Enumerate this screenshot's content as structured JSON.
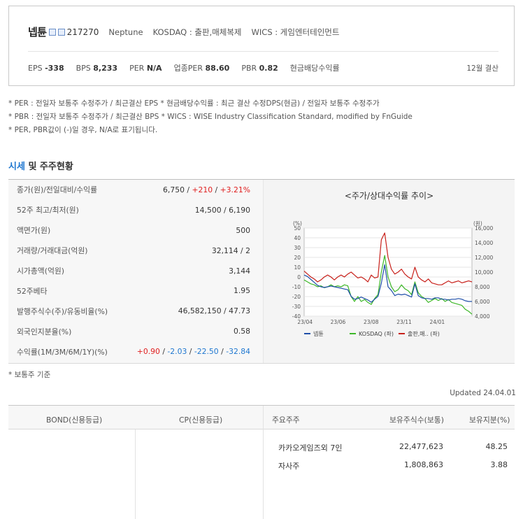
{
  "company": {
    "name": "넵튠",
    "code": "217270",
    "english_name": "Neptune",
    "market": "KOSDAQ : 출판,매체복제",
    "wics": "WICS : 게임엔터테인먼트"
  },
  "stats": [
    {
      "label": "EPS",
      "value": "-338"
    },
    {
      "label": "BPS",
      "value": "8,233"
    },
    {
      "label": "PER",
      "value": "N/A"
    },
    {
      "label": "업종PER",
      "value": "88.60"
    },
    {
      "label": "PBR",
      "value": "0.82"
    },
    {
      "label": "현금배당수익률",
      "value": ""
    }
  ],
  "settlement": "12월 결산",
  "notes": [
    "* PER : 전일자 보통주 수정주가 / 최근결산 EPS * 현금배당수익률 : 최근 결산 수정DPS(현금) / 전일자 보통주 수정주가",
    "* PBR : 전일자 보통주 수정주가 / 최근결산 BPS * WICS : WISE Industry Classification Standard, modified by FnGuide",
    "* PER, PBR값이 (-)일 경우, N/A로 표기됩니다."
  ],
  "section": {
    "title_accent": "시세",
    "title_rest": " 및 주주현황"
  },
  "price_table": [
    {
      "label": "종가(원)/전일대비/수익률",
      "parts": [
        {
          "t": "6,750 / ",
          "c": ""
        },
        {
          "t": "+210",
          "c": "red"
        },
        {
          "t": " / ",
          "c": ""
        },
        {
          "t": "+3.21%",
          "c": "red"
        }
      ]
    },
    {
      "label": "52주 최고/최저(원)",
      "parts": [
        {
          "t": "14,500 / 6,190",
          "c": ""
        }
      ]
    },
    {
      "label": "액면가(원)",
      "parts": [
        {
          "t": "500",
          "c": ""
        }
      ]
    },
    {
      "label": "거래량/거래대금(억원)",
      "parts": [
        {
          "t": "32,114 / 2",
          "c": ""
        }
      ]
    },
    {
      "label": "시가총액(억원)",
      "parts": [
        {
          "t": "3,144",
          "c": ""
        }
      ]
    },
    {
      "label": "52주베타",
      "parts": [
        {
          "t": "1.95",
          "c": ""
        }
      ]
    },
    {
      "label": "발행주식수(주)/유동비율(%)",
      "parts": [
        {
          "t": "46,582,150 / 47.73",
          "c": ""
        }
      ]
    },
    {
      "label": "외국인지분율(%)",
      "parts": [
        {
          "t": "0.58",
          "c": ""
        }
      ]
    },
    {
      "label": "수익률(1M/3M/6M/1Y)(%)",
      "parts": [
        {
          "t": "+0.90",
          "c": "red"
        },
        {
          "t": " / ",
          "c": ""
        },
        {
          "t": "-2.03",
          "c": "blue"
        },
        {
          "t": " / ",
          "c": ""
        },
        {
          "t": "-22.50",
          "c": "blue"
        },
        {
          "t": " / ",
          "c": ""
        },
        {
          "t": "-32.84",
          "c": "blue"
        }
      ]
    }
  ],
  "chart_data": {
    "type": "line",
    "title": "<주가/상대수익률 추이>",
    "left_axis_label": "(%)",
    "right_axis_label": "(원)",
    "left_ylim": [
      -40,
      50
    ],
    "right_ylim": [
      4000,
      16000
    ],
    "left_ticks": [
      "50",
      "40",
      "30",
      "20",
      "10",
      "0",
      "-10",
      "-20",
      "-30",
      "-40"
    ],
    "right_ticks": [
      "16,000",
      "14,000",
      "12,000",
      "10,000",
      "8,000",
      "6,000",
      "4,000"
    ],
    "x_ticks": [
      "23/04",
      "23/06",
      "23/08",
      "23/11",
      "24/01"
    ],
    "legend_position": "bottom",
    "series": [
      {
        "name": "넵튠",
        "color": "#1f4fa8",
        "axis": "right",
        "values": [
          9600,
          9400,
          9000,
          8600,
          8200,
          8000,
          7900,
          8000,
          8100,
          8000,
          7900,
          7800,
          7700,
          7600,
          6700,
          6300,
          6400,
          6600,
          6400,
          6200,
          5900,
          6300,
          6700,
          8500,
          11000,
          8000,
          7500,
          6800,
          7000,
          6900,
          7000,
          6800,
          6600,
          8400,
          6800,
          6500,
          6400,
          6400,
          6300,
          6500,
          6500,
          6300,
          6300,
          6200,
          6300,
          6300,
          6400,
          6300,
          6100,
          6000,
          6000
        ]
      },
      {
        "name": "KOSDAQ (좌)",
        "color": "#3fb82a",
        "axis": "left",
        "values": [
          -3,
          -5,
          -7,
          -8,
          -10,
          -9,
          -11,
          -10,
          -8,
          -10,
          -9,
          -10,
          -8,
          -9,
          -20,
          -25,
          -20,
          -25,
          -23,
          -26,
          -28,
          -22,
          -18,
          5,
          22,
          0,
          -10,
          -15,
          -13,
          -8,
          -12,
          -14,
          -18,
          -5,
          -16,
          -20,
          -22,
          -26,
          -24,
          -22,
          -24,
          -22,
          -25,
          -23,
          -26,
          -27,
          -28,
          -29,
          -33,
          -35,
          -38
        ]
      },
      {
        "name": "출판,매.. (좌)",
        "color": "#c8211b",
        "axis": "left",
        "values": [
          6,
          3,
          0,
          -2,
          -5,
          -3,
          0,
          2,
          0,
          -3,
          0,
          2,
          0,
          3,
          5,
          2,
          -1,
          0,
          -2,
          -5,
          2,
          -1,
          0,
          38,
          45,
          20,
          8,
          3,
          5,
          8,
          3,
          0,
          -2,
          10,
          0,
          -3,
          -5,
          -2,
          -6,
          -7,
          -8,
          -8,
          -6,
          -4,
          -6,
          -5,
          -4,
          -6,
          -5,
          -4,
          -5
        ]
      }
    ]
  },
  "below_note": "* 보통주 기준",
  "updated": "Updated 24.04.01",
  "bottom_table": {
    "headers": [
      "BOND(신용등급)",
      "CP(신용등급)",
      "주요주주",
      "보유주식수(보통)",
      "보유지분(%)"
    ],
    "shareholders": [
      {
        "name": "카카오게임즈외 7인",
        "shares": "22,477,623",
        "ratio": "48.25"
      },
      {
        "name": "자사주",
        "shares": "1,808,863",
        "ratio": "3.88"
      }
    ]
  }
}
